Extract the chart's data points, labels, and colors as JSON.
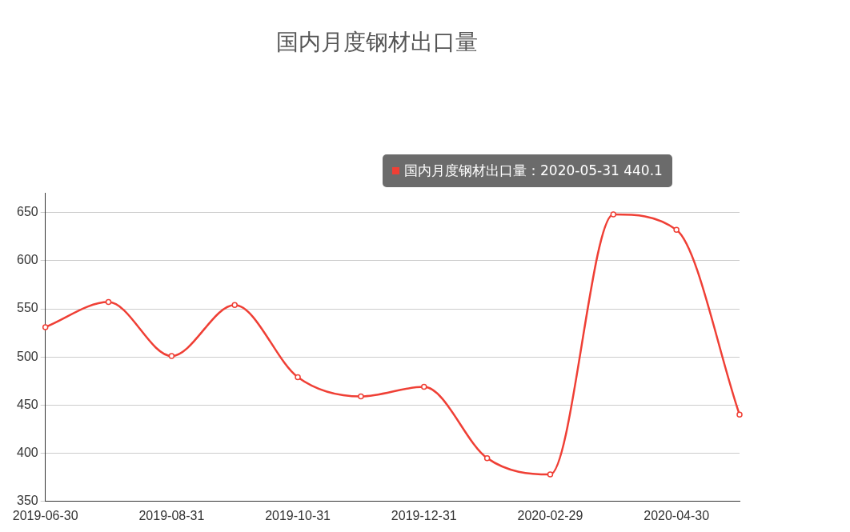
{
  "chart_data": {
    "type": "line",
    "title": "国内月度钢材出口量",
    "categories": [
      "2019-06-30",
      null,
      "2019-08-31",
      null,
      "2019-10-31",
      null,
      "2019-12-31",
      null,
      "2020-02-29",
      null,
      "2020-04-30",
      null
    ],
    "series": [
      {
        "name": "国内月度钢材出口量",
        "color": "#ef3f35",
        "values": [
          531,
          557,
          501,
          554,
          479,
          459,
          469,
          395,
          378,
          648,
          632,
          440.1
        ]
      }
    ],
    "ylim": [
      350,
      670
    ],
    "yticks": [
      350,
      400,
      450,
      500,
      550,
      600,
      650
    ],
    "grid": "y",
    "marker": "circle",
    "line_style": "solid",
    "annotations": [
      "：2020-05-31 440.1"
    ]
  }
}
